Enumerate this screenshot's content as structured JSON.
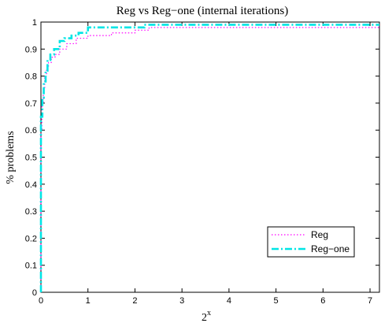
{
  "chart_data": {
    "type": "line",
    "title": "Reg vs Reg−one (internal iterations)",
    "xlabel_base": "2",
    "xlabel_sup": "x",
    "ylabel": "% problems",
    "xlim": [
      0,
      7.2
    ],
    "ylim": [
      0,
      1
    ],
    "x_ticks": [
      0,
      1,
      2,
      3,
      4,
      5,
      6,
      7
    ],
    "y_ticks": [
      0,
      0.1,
      0.2,
      0.3,
      0.4,
      0.5,
      0.6,
      0.7,
      0.8,
      0.9,
      1
    ],
    "x_tick_labels": [
      "0",
      "1",
      "2",
      "3",
      "4",
      "5",
      "6",
      "7"
    ],
    "y_tick_labels": [
      "0",
      "0.1",
      "0.2",
      "0.3",
      "0.4",
      "0.5",
      "0.6",
      "0.7",
      "0.8",
      "0.9",
      "1"
    ],
    "grid": false,
    "legend_position": "bottom-right",
    "series": [
      {
        "name": "Reg",
        "color": "#ff00ff",
        "style": "dotted",
        "x": [
          0,
          0,
          0.02,
          0.05,
          0.08,
          0.12,
          0.16,
          0.22,
          0.3,
          0.4,
          0.55,
          0.75,
          1.0,
          1.5,
          2.0,
          2.3,
          7.2
        ],
        "y": [
          0,
          0.6,
          0.7,
          0.75,
          0.8,
          0.83,
          0.85,
          0.87,
          0.88,
          0.9,
          0.92,
          0.94,
          0.95,
          0.96,
          0.97,
          0.98,
          0.98
        ]
      },
      {
        "name": "Reg−one",
        "color": "#00e5e5",
        "style": "dashdot",
        "x": [
          0,
          0,
          0.03,
          0.06,
          0.1,
          0.14,
          0.2,
          0.28,
          0.4,
          0.5,
          0.65,
          0.8,
          1.0,
          2.2,
          7.2
        ],
        "y": [
          0,
          0.65,
          0.72,
          0.78,
          0.82,
          0.86,
          0.88,
          0.9,
          0.93,
          0.94,
          0.95,
          0.96,
          0.98,
          0.99,
          0.99
        ]
      }
    ]
  }
}
